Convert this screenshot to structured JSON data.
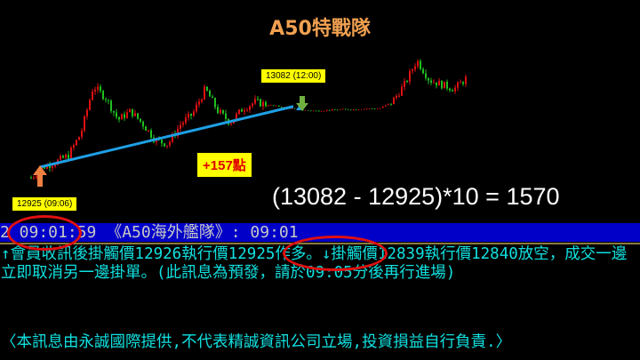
{
  "title": "A50特戰隊",
  "chart": {
    "entry_label": "12925 (09:06)",
    "exit_label": "13082 (12:00)",
    "gain_label": "+157點",
    "formula": "(13082 - 12925)*10 = 1570",
    "entry_price": 12925,
    "exit_price": 13082,
    "approx_prices": [
      12902,
      12930,
      12943,
      12960,
      13017,
      13139,
      13109,
      13052,
      13075,
      13040,
      12999,
      12989,
      13040,
      13068,
      13132,
      13075,
      13045,
      13081,
      13098,
      13091,
      13086,
      13081,
      13077,
      13075,
      13077,
      13079,
      13079,
      13081,
      13081,
      13098,
      13143,
      13206,
      13155,
      13143,
      13132,
      13160
    ],
    "colors": {
      "up": "#e01010",
      "down": "#20c020",
      "trend_line": "#1ea0e6",
      "entry_arrow": "#f08040",
      "exit_arrow": "#70b040"
    }
  },
  "message_header": "2 09:01:59 《A50海外艦隊》: 09:01",
  "message_body": "↑會員收訊後掛觸價12926執行價12925作多。↓掛觸價12839執行價12840放空，成交一邊立即取消另一邊掛單。(此訊息為預發，請於09:05分後再行進場)",
  "disclaimer": "〈本訊息由永誠國際提供,不代表精誠資訊公司立場,投資損益自行負責.〉"
}
